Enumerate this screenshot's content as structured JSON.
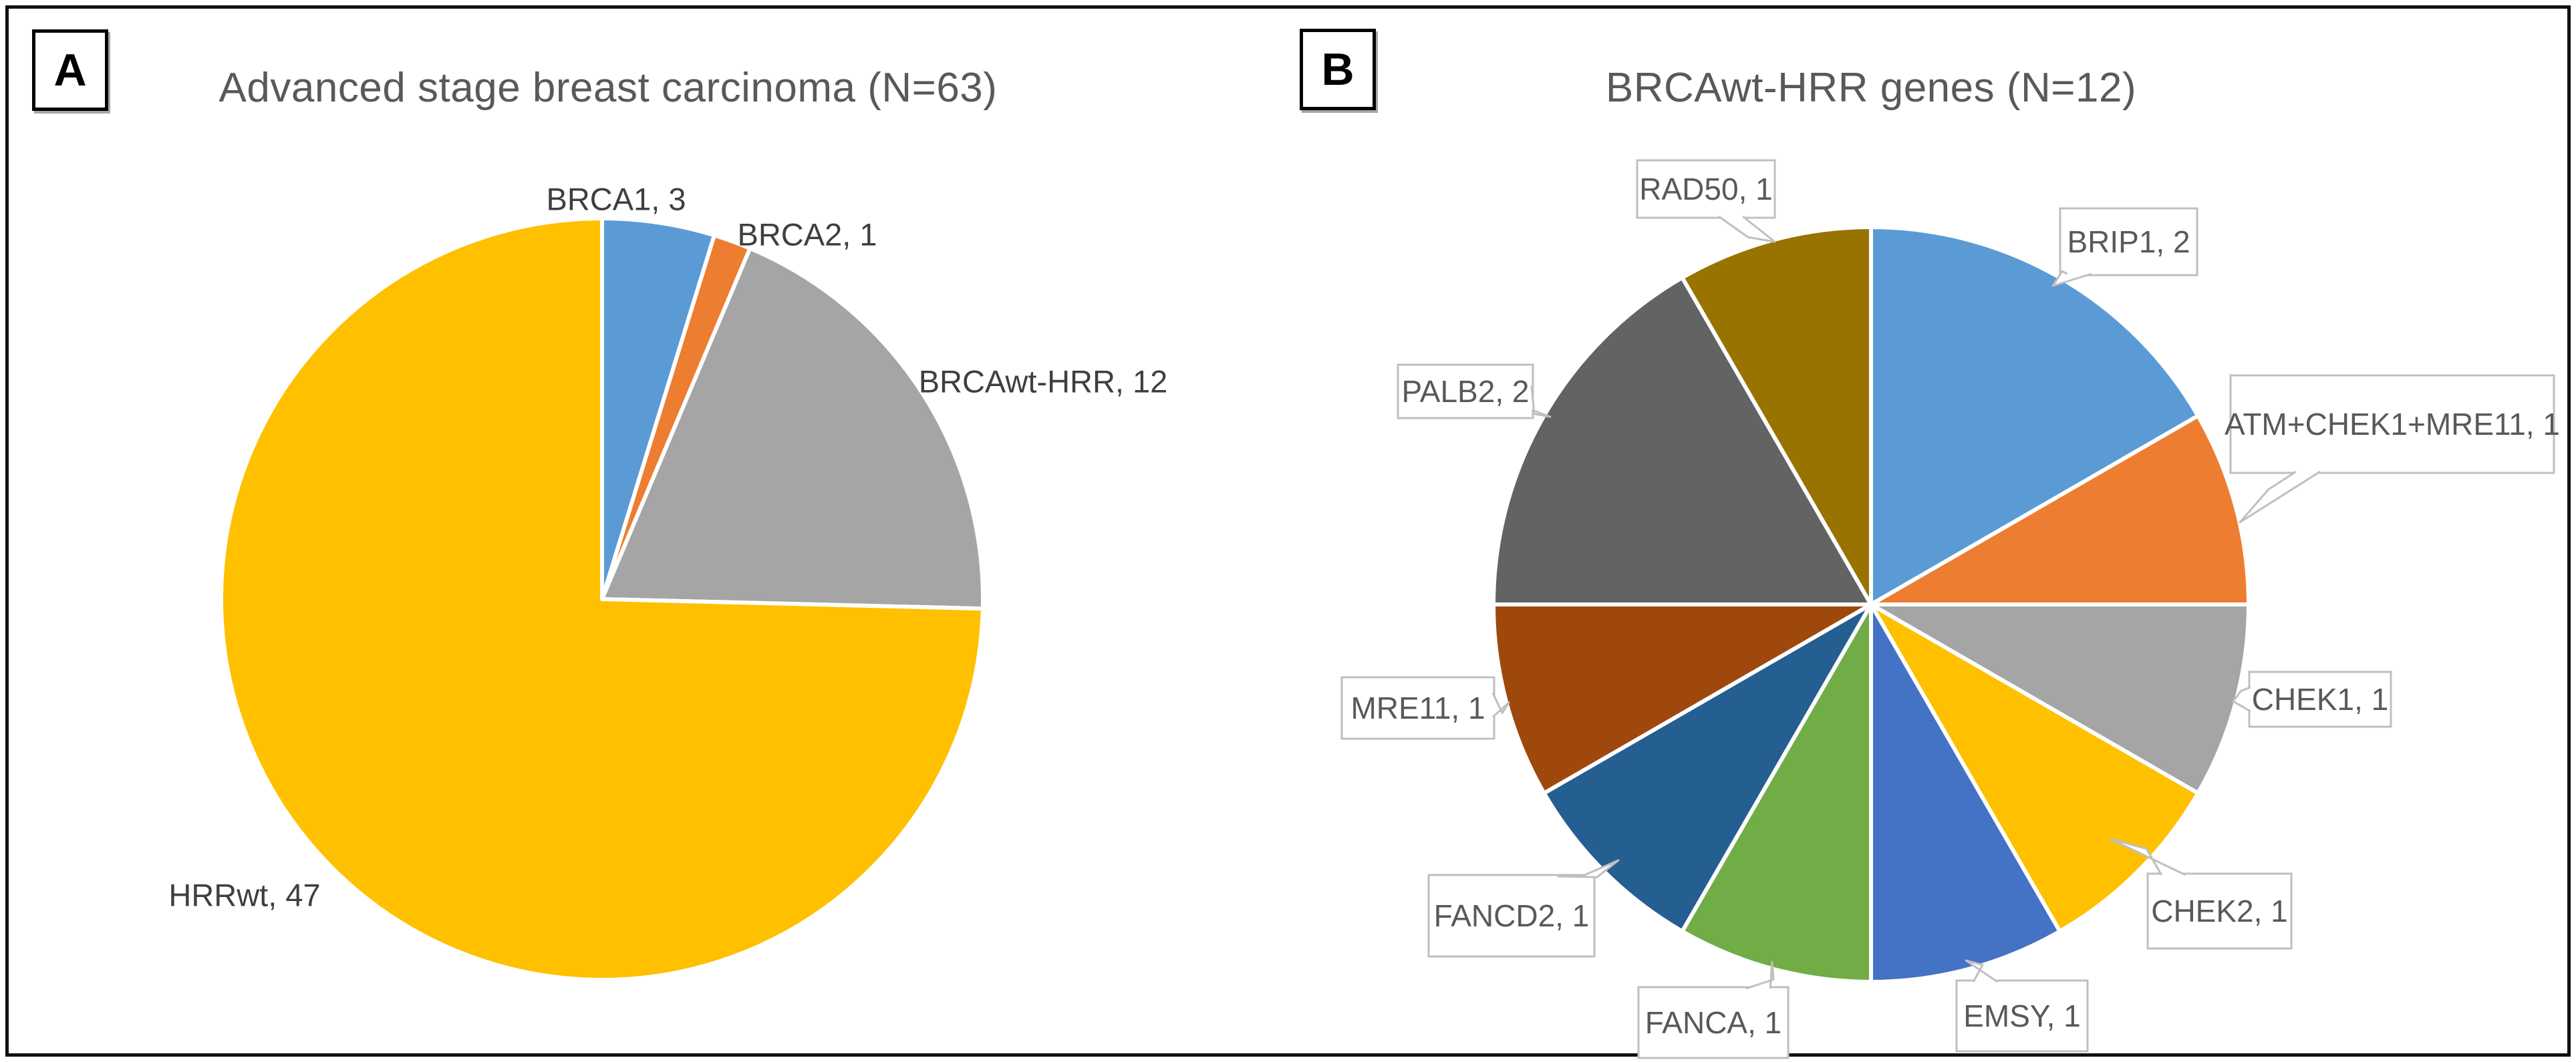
{
  "figure": {
    "panel_tags": [
      "A",
      "B"
    ]
  },
  "chart_data": [
    {
      "type": "pie",
      "panel": "A",
      "title": "Advanced stage breast carcinoma (N=63)",
      "total_n": 63,
      "start_angle_deg": 0,
      "direction": "clockwise",
      "label_style": "plain",
      "slices": [
        {
          "label": "BRCA1",
          "value": 3,
          "data_label": "BRCA1, 3",
          "color": "#5B9BD5"
        },
        {
          "label": "BRCA2",
          "value": 1,
          "data_label": "BRCA2, 1",
          "color": "#ED7D31"
        },
        {
          "label": "BRCAwt-HRR",
          "value": 12,
          "data_label": "BRCAwt-HRR, 12",
          "color": "#A5A5A5"
        },
        {
          "label": "HRRwt",
          "value": 47,
          "data_label": "HRRwt, 47",
          "color": "#FFC000"
        }
      ]
    },
    {
      "type": "pie",
      "panel": "B",
      "title": "BRCAwt-HRR genes (N=12)",
      "total_n": 12,
      "start_angle_deg": 0,
      "direction": "clockwise",
      "label_style": "callout",
      "slices": [
        {
          "label": "BRIP1",
          "value": 2,
          "data_label": "BRIP1, 2",
          "color": "#5B9BD5"
        },
        {
          "label": "ATM+CHEK1+MRE11",
          "value": 1,
          "data_label": "ATM+CHEK1+MRE11, 1",
          "color": "#ED7D31"
        },
        {
          "label": "CHEK1",
          "value": 1,
          "data_label": "CHEK1, 1",
          "color": "#A5A5A5"
        },
        {
          "label": "CHEK2",
          "value": 1,
          "data_label": "CHEK2, 1",
          "color": "#FFC000"
        },
        {
          "label": "EMSY",
          "value": 1,
          "data_label": "EMSY, 1",
          "color": "#4472C4"
        },
        {
          "label": "FANCA",
          "value": 1,
          "data_label": "FANCA, 1",
          "color": "#70AD47"
        },
        {
          "label": "FANCD2",
          "value": 1,
          "data_label": "FANCD2, 1",
          "color": "#255E91"
        },
        {
          "label": "MRE11",
          "value": 1,
          "data_label": "MRE11, 1",
          "color": "#9E480E"
        },
        {
          "label": "PALB2",
          "value": 2,
          "data_label": "PALB2, 2",
          "color": "#636363"
        },
        {
          "label": "RAD50",
          "value": 1,
          "data_label": "RAD50, 1",
          "color": "#997300"
        }
      ]
    }
  ],
  "style_colors": {
    "callout_border": "#BFBFBF",
    "callout_fill": "#FFFFFF",
    "slice_separator": "#FFFFFF",
    "title_text": "#595959",
    "label_text": "#3F3F3F",
    "frame_border": "#111111"
  }
}
